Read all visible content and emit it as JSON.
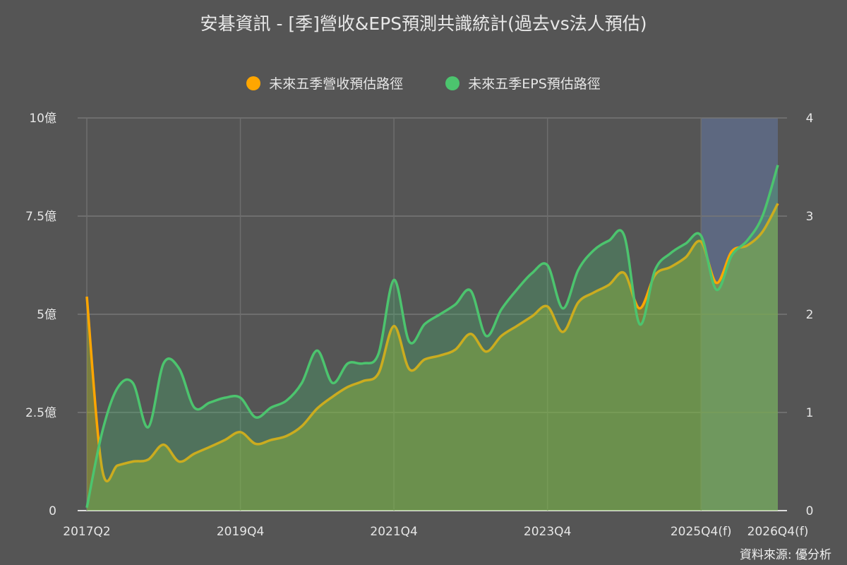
{
  "chart_data": {
    "type": "area",
    "title": "安碁資訊 - [季]營收&EPS預測共識統計(過去vs法人預估)",
    "source": "資料來源: 優分析",
    "legend": {
      "placement": "top-center"
    },
    "x_tick_labels": [
      {
        "index": 0,
        "label": "2017Q2"
      },
      {
        "index": 10,
        "label": "2019Q4"
      },
      {
        "index": 20,
        "label": "2021Q4"
      },
      {
        "index": 30,
        "label": "2023Q4"
      },
      {
        "index": 40,
        "label": "2025Q4(f)"
      },
      {
        "index": 45,
        "label": "2026Q4(f)"
      }
    ],
    "forecast_range_index": [
      40,
      45
    ],
    "y_left": {
      "ylim": [
        0,
        10
      ],
      "ticks": [
        0,
        2.5,
        5,
        7.5,
        10
      ],
      "tick_labels": [
        "0",
        "2.5億",
        "5億",
        "7.5億",
        "10億"
      ]
    },
    "y_right": {
      "ylim": [
        0,
        4
      ],
      "ticks": [
        0,
        1,
        2,
        3,
        4
      ],
      "tick_labels": [
        "0",
        "1",
        "2",
        "3",
        "4"
      ]
    },
    "grid": true,
    "series": [
      {
        "name": "未來五季營收預估路徑",
        "axis": "left",
        "unit": "億",
        "color": "#ffa600",
        "values": [
          5.45,
          1.05,
          1.15,
          1.25,
          1.3,
          1.68,
          1.25,
          1.45,
          1.62,
          1.8,
          2.0,
          1.7,
          1.8,
          1.9,
          2.15,
          2.6,
          2.9,
          3.15,
          3.3,
          3.5,
          4.7,
          3.6,
          3.85,
          3.95,
          4.1,
          4.5,
          4.05,
          4.45,
          4.7,
          4.95,
          5.2,
          4.55,
          5.3,
          5.55,
          5.75,
          6.05,
          5.15,
          6.0,
          6.2,
          6.45,
          6.85,
          5.8,
          6.6,
          6.75,
          7.1,
          7.82
        ]
      },
      {
        "name": "未來五季EPS預估路徑",
        "axis": "right",
        "unit": "",
        "color": "#4cc46e",
        "values": [
          0.03,
          0.8,
          1.25,
          1.3,
          0.85,
          1.5,
          1.45,
          1.05,
          1.1,
          1.15,
          1.15,
          0.95,
          1.05,
          1.12,
          1.3,
          1.63,
          1.3,
          1.5,
          1.5,
          1.6,
          2.35,
          1.72,
          1.9,
          2.0,
          2.1,
          2.24,
          1.78,
          2.05,
          2.25,
          2.42,
          2.5,
          2.06,
          2.45,
          2.65,
          2.75,
          2.8,
          1.9,
          2.45,
          2.62,
          2.72,
          2.8,
          2.25,
          2.6,
          2.75,
          3.0,
          3.52
        ]
      }
    ]
  }
}
